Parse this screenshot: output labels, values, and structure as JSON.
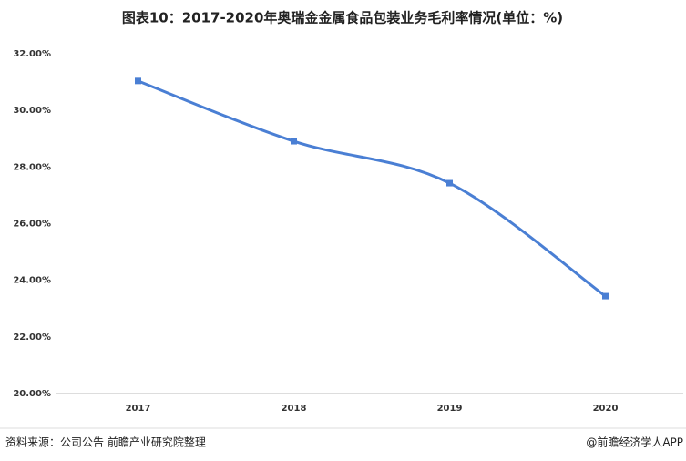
{
  "chart_data": {
    "type": "line",
    "title": "图表10：2017-2020年奥瑞金金属食品包装业务毛利率情况(单位：%)",
    "categories": [
      "2017",
      "2018",
      "2019",
      "2020"
    ],
    "values": [
      31.04,
      28.91,
      27.43,
      23.44
    ],
    "color": "#4a7fd4",
    "ylim": [
      20,
      32
    ],
    "yticks": [
      {
        "value": 20,
        "label": "20.00%"
      },
      {
        "value": 22,
        "label": "22.00%"
      },
      {
        "value": 24,
        "label": "24.00%"
      },
      {
        "value": 26,
        "label": "26.00%"
      },
      {
        "value": 28,
        "label": "28.00%"
      },
      {
        "value": 30,
        "label": "30.00%"
      },
      {
        "value": 32,
        "label": "32.00%"
      }
    ],
    "grid": false,
    "source": "资料来源：公司公告 前瞻产业研究院整理",
    "credit": "@前瞻经济学人APP"
  }
}
